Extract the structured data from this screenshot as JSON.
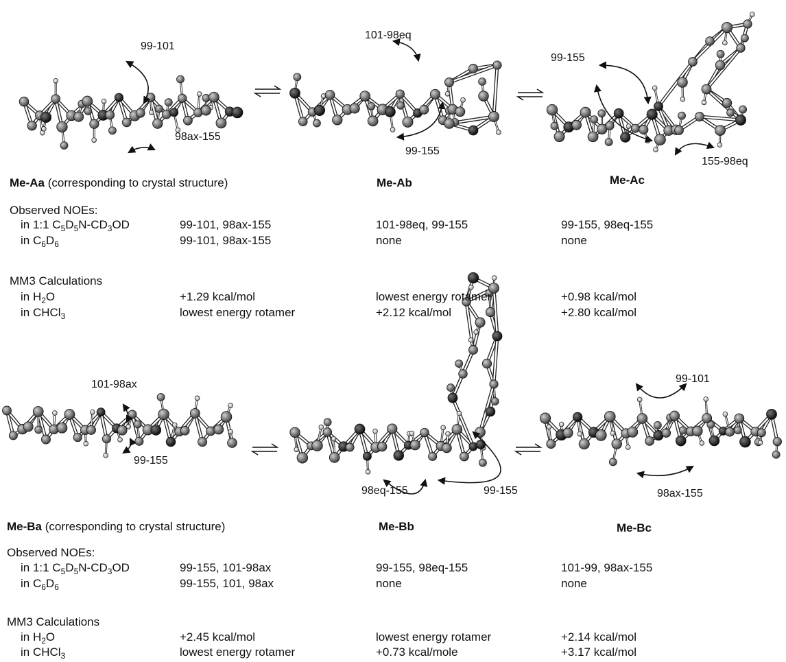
{
  "panels": [
    {
      "conformers": [
        {
          "name": "Me-Aa",
          "note": " (corresponding to crystal structure)",
          "noe_labels": [
            "99-101",
            "98ax-155"
          ]
        },
        {
          "name": "Me-Ab",
          "note": "",
          "noe_labels": [
            "101-98eq",
            "99-155"
          ]
        },
        {
          "name": "Me-Ac",
          "note": "",
          "noe_labels": [
            "99-155",
            "155-98eq"
          ]
        }
      ],
      "observed_header": "Observed NOEs:",
      "observed_rows": [
        {
          "solvent": [
            "in 1:1 C",
            "5",
            "D",
            "5",
            "N-CD",
            "3",
            "OD"
          ],
          "values": [
            "99-101, 98ax-155",
            "101-98eq, 99-155",
            "99-155, 98eq-155"
          ]
        },
        {
          "solvent": [
            "in C",
            "6",
            "D",
            "6"
          ],
          "values": [
            "99-101, 98ax-155",
            "none",
            "none"
          ]
        }
      ],
      "mm3_header": "MM3  Calculations",
      "mm3_rows": [
        {
          "solvent": [
            "in H",
            "2",
            "O"
          ],
          "values": [
            "+1.29 kcal/mol",
            "lowest energy rotamer",
            "+0.98 kcal/mol"
          ]
        },
        {
          "solvent": [
            "in CHCl",
            "3"
          ],
          "values": [
            "lowest energy rotamer",
            "+2.12 kcal/mol",
            "+2.80 kcal/mol"
          ]
        }
      ]
    },
    {
      "conformers": [
        {
          "name": "Me-Ba",
          "note": " (corresponding to crystal structure)",
          "noe_labels": [
            "101-98ax",
            "99-155"
          ]
        },
        {
          "name": "Me-Bb",
          "note": "",
          "noe_labels": [
            "98eq-155",
            "99-155"
          ]
        },
        {
          "name": "Me-Bc",
          "note": "",
          "noe_labels": [
            "99-101",
            "98ax-155"
          ]
        }
      ],
      "observed_header": "Observed NOEs:",
      "observed_rows": [
        {
          "solvent": [
            "in 1:1 C",
            "5",
            "D",
            "5",
            "N-CD",
            "3",
            "OD"
          ],
          "values": [
            "99-155, 101-98ax",
            "99-155, 98eq-155",
            "101-99, 98ax-155"
          ]
        },
        {
          "solvent": [
            "in C",
            "6",
            "D",
            "6"
          ],
          "values": [
            "99-155, 101, 98ax",
            "none",
            "none"
          ]
        }
      ],
      "mm3_header": "MM3  Calculations",
      "mm3_rows": [
        {
          "solvent": [
            "in H",
            "2",
            "O"
          ],
          "values": [
            "+2.45 kcal/mol",
            "lowest energy rotamer",
            "+2.14 kcal/mol"
          ]
        },
        {
          "solvent": [
            "in CHCl",
            "3"
          ],
          "values": [
            "lowest energy rotamer",
            "+0.73 kcal/mole",
            "+3.17 kcal/mol"
          ]
        }
      ]
    }
  ]
}
